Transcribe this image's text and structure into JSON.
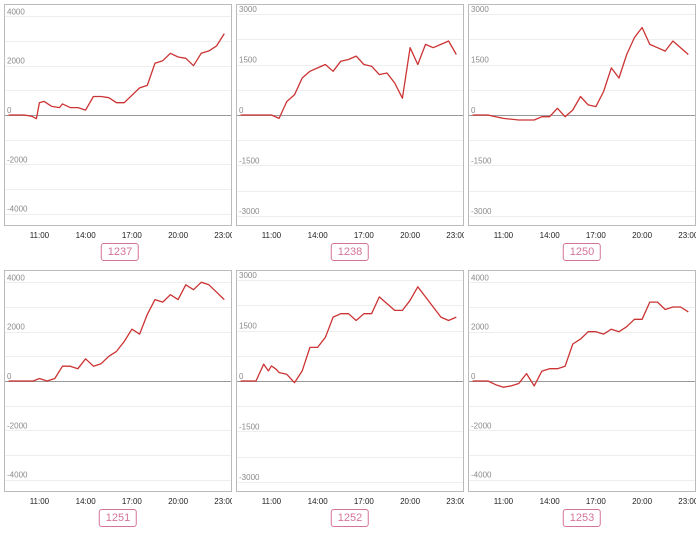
{
  "colors": {
    "line": "#cc3333",
    "badge": "#d4739a",
    "grid": "#eeeeee",
    "frame": "#bbbbbb",
    "zero": "#999999"
  },
  "panels": [
    {
      "label": "1237"
    },
    {
      "label": "1238"
    },
    {
      "label": "1250"
    },
    {
      "label": "1251"
    },
    {
      "label": "1252"
    },
    {
      "label": "1253"
    }
  ],
  "chart_data": [
    {
      "type": "line",
      "x_unit": "hour",
      "xticks": [
        "11:00",
        "14:00",
        "17:00",
        "20:00",
        "23:00"
      ],
      "xlim": [
        8.7,
        23.5
      ],
      "ylim": [
        -4500,
        4500
      ],
      "yticks": [
        4000,
        2000,
        0,
        -2000,
        -4000
      ],
      "x": [
        9,
        9.5,
        10,
        10.5,
        10.8,
        11,
        11.3,
        11.8,
        12.3,
        12.5,
        13,
        13.5,
        14,
        14.5,
        15,
        15.5,
        16,
        16.5,
        17,
        17.5,
        18,
        18.5,
        19,
        19.5,
        20,
        20.5,
        21,
        21.5,
        22,
        22.5,
        23
      ],
      "y": [
        0,
        0,
        0,
        -50,
        -150,
        500,
        550,
        350,
        300,
        450,
        300,
        300,
        200,
        750,
        750,
        700,
        500,
        500,
        800,
        1100,
        1200,
        2100,
        2200,
        2500,
        2350,
        2300,
        2000,
        2500,
        2600,
        2800,
        3300
      ]
    },
    {
      "type": "line",
      "x_unit": "hour",
      "xticks": [
        "11:00",
        "14:00",
        "17:00",
        "20:00",
        "23:00"
      ],
      "xlim": [
        8.7,
        23.5
      ],
      "ylim": [
        -3300,
        3300
      ],
      "yticks": [
        3000,
        1500,
        0,
        -1500,
        -3000
      ],
      "x": [
        9,
        10,
        11,
        11.5,
        12,
        12.5,
        13,
        13.5,
        14,
        14.5,
        15,
        15.5,
        16,
        16.5,
        17,
        17.5,
        18,
        18.5,
        19,
        19.5,
        20,
        20.5,
        21,
        21.5,
        22,
        22.5,
        23
      ],
      "y": [
        0,
        0,
        0,
        -100,
        400,
        600,
        1100,
        1300,
        1400,
        1500,
        1300,
        1600,
        1650,
        1750,
        1500,
        1450,
        1200,
        1250,
        950,
        500,
        2000,
        1500,
        2100,
        2000,
        2100,
        2200,
        1800
      ]
    },
    {
      "type": "line",
      "x_unit": "hour",
      "xticks": [
        "11:00",
        "14:00",
        "17:00",
        "20:00",
        "23:00"
      ],
      "xlim": [
        8.7,
        23.5
      ],
      "ylim": [
        -3300,
        3300
      ],
      "yticks": [
        3000,
        1500,
        0,
        -1500,
        -3000
      ],
      "x": [
        9,
        10,
        10.5,
        11,
        12,
        13,
        13.5,
        14,
        14.5,
        15,
        15.5,
        16,
        16.5,
        17,
        17.5,
        18,
        18.5,
        19,
        19.5,
        20,
        20.5,
        21,
        21.5,
        22,
        22.5,
        23
      ],
      "y": [
        0,
        0,
        -50,
        -100,
        -150,
        -150,
        -50,
        -50,
        200,
        -50,
        150,
        550,
        300,
        250,
        700,
        1400,
        1100,
        1800,
        2300,
        2600,
        2100,
        2000,
        1900,
        2200,
        2000,
        1800
      ]
    },
    {
      "type": "line",
      "x_unit": "hour",
      "xticks": [
        "11:00",
        "14:00",
        "17:00",
        "20:00",
        "23:00"
      ],
      "xlim": [
        8.7,
        23.5
      ],
      "ylim": [
        -4500,
        4500
      ],
      "yticks": [
        4000,
        2000,
        0,
        -2000,
        -4000
      ],
      "x": [
        9,
        10,
        10.6,
        11,
        11.5,
        12,
        12.5,
        13,
        13.5,
        14,
        14.5,
        15,
        15.5,
        16,
        16.5,
        17,
        17.5,
        18,
        18.5,
        19,
        19.5,
        20,
        20.5,
        21,
        21.5,
        22,
        22.5,
        23
      ],
      "y": [
        0,
        0,
        0,
        100,
        0,
        100,
        600,
        600,
        500,
        900,
        600,
        700,
        1000,
        1200,
        1600,
        2100,
        1900,
        2700,
        3300,
        3200,
        3500,
        3300,
        3900,
        3700,
        4000,
        3900,
        3600,
        3300
      ]
    },
    {
      "type": "line",
      "x_unit": "hour",
      "xticks": [
        "11:00",
        "14:00",
        "17:00",
        "20:00",
        "23:00"
      ],
      "xlim": [
        8.7,
        23.5
      ],
      "ylim": [
        -3300,
        3300
      ],
      "yticks": [
        3000,
        1500,
        0,
        -1500,
        -3000
      ],
      "x": [
        9,
        10,
        10.3,
        10.5,
        10.8,
        11,
        11.3,
        11.5,
        12,
        12.5,
        13,
        13.5,
        14,
        14.5,
        15,
        15.5,
        16,
        16.5,
        17,
        17.5,
        18,
        18.5,
        19,
        19.5,
        20,
        20.5,
        21,
        21.5,
        22,
        22.5,
        23
      ],
      "y": [
        0,
        0,
        300,
        500,
        300,
        450,
        350,
        250,
        200,
        -50,
        300,
        1000,
        1000,
        1300,
        1900,
        2000,
        2000,
        1800,
        2000,
        2000,
        2500,
        2300,
        2100,
        2100,
        2400,
        2800,
        2500,
        2200,
        1900,
        1800,
        1900
      ]
    },
    {
      "type": "line",
      "x_unit": "hour",
      "xticks": [
        "11:00",
        "14:00",
        "17:00",
        "20:00",
        "23:00"
      ],
      "xlim": [
        8.7,
        23.5
      ],
      "ylim": [
        -4500,
        4500
      ],
      "yticks": [
        4000,
        2000,
        0,
        -2000,
        -4000
      ],
      "x": [
        9,
        10,
        10.5,
        11,
        11.5,
        12,
        12.5,
        13,
        13.5,
        14,
        14.5,
        15,
        15.5,
        16,
        16.5,
        17,
        17.5,
        18,
        18.5,
        19,
        19.5,
        20,
        20.5,
        21,
        21.5,
        22,
        22.5,
        23
      ],
      "y": [
        0,
        0,
        -150,
        -250,
        -200,
        -100,
        300,
        -200,
        400,
        500,
        500,
        600,
        1500,
        1700,
        2000,
        2000,
        1900,
        2100,
        2000,
        2200,
        2500,
        2500,
        3200,
        3200,
        2900,
        3000,
        3000,
        2800
      ]
    }
  ]
}
